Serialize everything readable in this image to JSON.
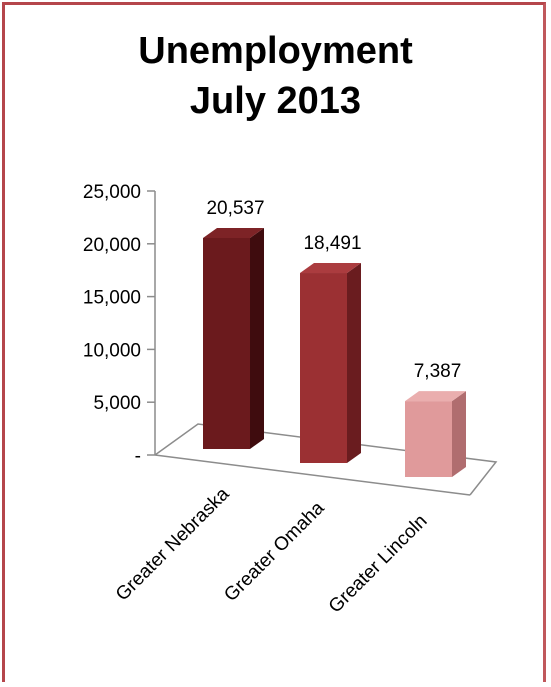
{
  "chart_data": {
    "type": "bar",
    "title_lines": [
      "Unemployment",
      "July 2013"
    ],
    "categories": [
      "Greater Nebraska",
      "Greater Omaha",
      "Greater Lincoln"
    ],
    "values": [
      20537,
      18491,
      7387
    ],
    "value_labels": [
      "20,537",
      "18,491",
      "7,387"
    ],
    "ylim": [
      0,
      25000
    ],
    "yticks": [
      0,
      5000,
      10000,
      15000,
      20000,
      25000
    ],
    "ytick_labels": [
      "-",
      "5,000",
      "10,000",
      "15,000",
      "20,000",
      "25,000"
    ],
    "xlabel": "",
    "ylabel": "",
    "grid": false,
    "legend": "none",
    "style": "3d-column",
    "colors": {
      "front": [
        "#6b1a1d",
        "#9b3033",
        "#e09a9b"
      ],
      "side": [
        "#3f0c0e",
        "#6a1c1f",
        "#b06d6f"
      ],
      "top": [
        "#7d2326",
        "#ab3c3f",
        "#eaaeae"
      ],
      "border": "#b5464b"
    }
  }
}
